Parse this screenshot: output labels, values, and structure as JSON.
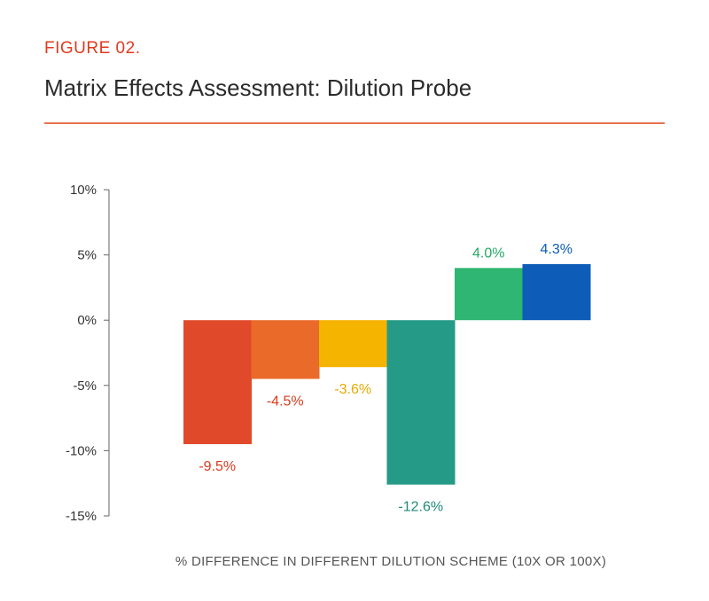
{
  "header": {
    "figure_label": "FIGURE 02.",
    "title": "Matrix Effects Assessment: Dilution Probe"
  },
  "colors": {
    "accent": "#e03a1e",
    "rule": "#e8734f",
    "axis": "#666666"
  },
  "chart_data": {
    "type": "bar",
    "title": "Matrix Effects Assessment: Dilution Probe",
    "xlabel": "% DIFFERENCE IN DIFFERENT DILUTION SCHEME (10X OR 100X)",
    "ylabel": "",
    "ylim": [
      -15,
      10
    ],
    "yticks": [
      10,
      5,
      0,
      -5,
      -10,
      -15
    ],
    "ytick_labels": [
      "10%",
      "5%",
      "0%",
      "-5%",
      "-10%",
      "-15%"
    ],
    "grid": false,
    "values": [
      -9.5,
      -4.5,
      -3.6,
      -12.6,
      4.0,
      4.3
    ],
    "data_labels": [
      "-9.5%",
      "-4.5%",
      "-3.6%",
      "-12.6%",
      "4.0%",
      "4.3%"
    ],
    "bar_colors": [
      "#e04a2b",
      "#ea6a2a",
      "#f5b400",
      "#259a86",
      "#2fb672",
      "#0d5db8"
    ],
    "label_colors": [
      "#d93a1c",
      "#d93a1c",
      "#e9a800",
      "#1f8a78",
      "#24a866",
      "#0d5db8"
    ]
  }
}
